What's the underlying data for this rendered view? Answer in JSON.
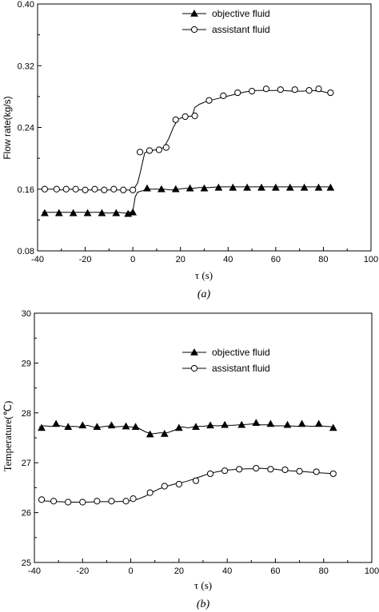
{
  "chart_data": [
    {
      "type": "line",
      "panel": "a",
      "caption": "(a)",
      "xlabel": "τ  (s)",
      "ylabel": "Flow rate(kg/s)",
      "xlim": [
        -40,
        100
      ],
      "ylim": [
        0.08,
        0.4
      ],
      "xticks": [
        -40,
        -20,
        0,
        20,
        40,
        60,
        80,
        100
      ],
      "yticks": [
        0.08,
        0.16,
        0.24,
        0.32,
        0.4
      ],
      "ytick_labels": [
        "0.08",
        "0.16",
        "0.24",
        "0.32",
        "0.40"
      ],
      "xtick_labels": [
        "-40",
        "-20",
        "0",
        "20",
        "40",
        "60",
        "80",
        "100"
      ],
      "legend_position": "top-center",
      "series": [
        {
          "name": "objective fluid",
          "marker": "filled-triangle",
          "line": [
            [
              -38,
              0.13
            ],
            [
              -34,
              0.13
            ],
            [
              -30,
              0.13
            ],
            [
              -26,
              0.13
            ],
            [
              -22,
              0.13
            ],
            [
              -18,
              0.13
            ],
            [
              -14,
              0.13
            ],
            [
              -10,
              0.129
            ],
            [
              -6,
              0.13
            ],
            [
              -3,
              0.129
            ],
            [
              0,
              0.131
            ],
            [
              1,
              0.15
            ],
            [
              2,
              0.156
            ],
            [
              4,
              0.158
            ],
            [
              7,
              0.16
            ],
            [
              10,
              0.16
            ],
            [
              13,
              0.16
            ],
            [
              16,
              0.159
            ],
            [
              19,
              0.16
            ],
            [
              22,
              0.161
            ],
            [
              25,
              0.161
            ],
            [
              28,
              0.162
            ],
            [
              32,
              0.162
            ],
            [
              36,
              0.163
            ],
            [
              40,
              0.163
            ],
            [
              44,
              0.163
            ],
            [
              48,
              0.163
            ],
            [
              52,
              0.163
            ],
            [
              56,
              0.163
            ],
            [
              60,
              0.163
            ],
            [
              64,
              0.163
            ],
            [
              68,
              0.163
            ],
            [
              72,
              0.163
            ],
            [
              76,
              0.163
            ],
            [
              80,
              0.163
            ],
            [
              83,
              0.163
            ]
          ],
          "markers": [
            [
              -37,
              0.129
            ],
            [
              -31,
              0.129
            ],
            [
              -25,
              0.129
            ],
            [
              -19,
              0.129
            ],
            [
              -13,
              0.129
            ],
            [
              -7,
              0.129
            ],
            [
              -2,
              0.128
            ],
            [
              0,
              0.13
            ],
            [
              6,
              0.161
            ],
            [
              12,
              0.16
            ],
            [
              18,
              0.16
            ],
            [
              24,
              0.161
            ],
            [
              30,
              0.161
            ],
            [
              36,
              0.162
            ],
            [
              42,
              0.162
            ],
            [
              48,
              0.162
            ],
            [
              54,
              0.162
            ],
            [
              60,
              0.162
            ],
            [
              66,
              0.162
            ],
            [
              72,
              0.162
            ],
            [
              78,
              0.162
            ],
            [
              83,
              0.162
            ]
          ]
        },
        {
          "name": "assistant fluid",
          "marker": "open-circle",
          "line": [
            [
              -38,
              0.16
            ],
            [
              -34,
              0.16
            ],
            [
              -30,
              0.159
            ],
            [
              -26,
              0.16
            ],
            [
              -22,
              0.159
            ],
            [
              -18,
              0.159
            ],
            [
              -14,
              0.159
            ],
            [
              -10,
              0.159
            ],
            [
              -6,
              0.159
            ],
            [
              -2,
              0.159
            ],
            [
              0,
              0.158
            ],
            [
              2,
              0.168
            ],
            [
              3,
              0.18
            ],
            [
              4,
              0.194
            ],
            [
              5,
              0.207
            ],
            [
              7,
              0.21
            ],
            [
              10,
              0.211
            ],
            [
              13,
              0.214
            ],
            [
              15,
              0.225
            ],
            [
              17,
              0.24
            ],
            [
              19,
              0.251
            ],
            [
              21,
              0.253
            ],
            [
              23,
              0.254
            ],
            [
              25,
              0.255
            ],
            [
              26,
              0.266
            ],
            [
              28,
              0.27
            ],
            [
              31,
              0.274
            ],
            [
              35,
              0.277
            ],
            [
              39,
              0.28
            ],
            [
              43,
              0.283
            ],
            [
              47,
              0.286
            ],
            [
              51,
              0.288
            ],
            [
              55,
              0.288
            ],
            [
              59,
              0.288
            ],
            [
              63,
              0.288
            ],
            [
              67,
              0.287
            ],
            [
              71,
              0.287
            ],
            [
              75,
              0.288
            ],
            [
              79,
              0.287
            ],
            [
              83,
              0.284
            ]
          ],
          "markers": [
            [
              -37,
              0.16
            ],
            [
              -32,
              0.16
            ],
            [
              -28,
              0.16
            ],
            [
              -24,
              0.16
            ],
            [
              -20,
              0.159
            ],
            [
              -16,
              0.16
            ],
            [
              -12,
              0.159
            ],
            [
              -8,
              0.16
            ],
            [
              -4,
              0.159
            ],
            [
              0,
              0.159
            ],
            [
              3,
              0.208
            ],
            [
              7,
              0.21
            ],
            [
              11,
              0.211
            ],
            [
              14,
              0.214
            ],
            [
              18,
              0.25
            ],
            [
              22,
              0.254
            ],
            [
              26,
              0.255
            ],
            [
              32,
              0.275
            ],
            [
              38,
              0.281
            ],
            [
              44,
              0.285
            ],
            [
              50,
              0.287
            ],
            [
              56,
              0.29
            ],
            [
              62,
              0.289
            ],
            [
              68,
              0.289
            ],
            [
              74,
              0.288
            ],
            [
              78,
              0.29
            ],
            [
              83,
              0.285
            ]
          ]
        }
      ]
    },
    {
      "type": "line",
      "panel": "b",
      "caption": "(b)",
      "xlabel": "τ  (s)",
      "ylabel": "Temperature(℃)",
      "xlim": [
        -40,
        100
      ],
      "ylim": [
        25,
        30
      ],
      "xticks": [
        -40,
        -20,
        0,
        20,
        40,
        60,
        80,
        100
      ],
      "yticks": [
        25,
        26,
        27,
        28,
        29,
        30
      ],
      "ytick_labels": [
        "25",
        "26",
        "27",
        "28",
        "29",
        "30"
      ],
      "xtick_labels": [
        "-40",
        "-20",
        "0",
        "20",
        "40",
        "60",
        "80",
        "100"
      ],
      "legend_position": "top-center",
      "series": [
        {
          "name": "objective fluid",
          "marker": "filled-triangle",
          "line": [
            [
              -38,
              27.72
            ],
            [
              -36,
              27.74
            ],
            [
              -33,
              27.73
            ],
            [
              -30,
              27.75
            ],
            [
              -27,
              27.72
            ],
            [
              -24,
              27.73
            ],
            [
              -21,
              27.72
            ],
            [
              -18,
              27.75
            ],
            [
              -15,
              27.71
            ],
            [
              -12,
              27.72
            ],
            [
              -9,
              27.74
            ],
            [
              -6,
              27.72
            ],
            [
              -3,
              27.73
            ],
            [
              0,
              27.72
            ],
            [
              3,
              27.7
            ],
            [
              6,
              27.62
            ],
            [
              9,
              27.58
            ],
            [
              12,
              27.6
            ],
            [
              15,
              27.6
            ],
            [
              18,
              27.65
            ],
            [
              21,
              27.72
            ],
            [
              24,
              27.7
            ],
            [
              27,
              27.73
            ],
            [
              30,
              27.73
            ],
            [
              33,
              27.75
            ],
            [
              36,
              27.74
            ],
            [
              39,
              27.75
            ],
            [
              42,
              27.75
            ],
            [
              45,
              27.76
            ],
            [
              48,
              27.77
            ],
            [
              51,
              27.78
            ],
            [
              54,
              27.76
            ],
            [
              57,
              27.76
            ],
            [
              60,
              27.74
            ],
            [
              63,
              27.74
            ],
            [
              66,
              27.74
            ],
            [
              69,
              27.73
            ],
            [
              72,
              27.74
            ],
            [
              75,
              27.73
            ],
            [
              78,
              27.74
            ],
            [
              81,
              27.73
            ],
            [
              84,
              27.72
            ]
          ],
          "markers": [
            [
              -37,
              27.7
            ],
            [
              -31,
              27.78
            ],
            [
              -26,
              27.72
            ],
            [
              -20,
              27.75
            ],
            [
              -14,
              27.72
            ],
            [
              -8,
              27.75
            ],
            [
              -2,
              27.73
            ],
            [
              2,
              27.72
            ],
            [
              8,
              27.57
            ],
            [
              14,
              27.58
            ],
            [
              20,
              27.7
            ],
            [
              27,
              27.72
            ],
            [
              33,
              27.75
            ],
            [
              39,
              27.76
            ],
            [
              46,
              27.76
            ],
            [
              52,
              27.8
            ],
            [
              58,
              27.78
            ],
            [
              65,
              27.76
            ],
            [
              71,
              27.78
            ],
            [
              78,
              27.78
            ],
            [
              84,
              27.7
            ]
          ]
        },
        {
          "name": "assistant fluid",
          "marker": "open-circle",
          "line": [
            [
              -38,
              26.24
            ],
            [
              -34,
              26.23
            ],
            [
              -30,
              26.22
            ],
            [
              -26,
              26.21
            ],
            [
              -22,
              26.21
            ],
            [
              -18,
              26.21
            ],
            [
              -14,
              26.22
            ],
            [
              -10,
              26.22
            ],
            [
              -6,
              26.22
            ],
            [
              -2,
              26.23
            ],
            [
              0,
              26.24
            ],
            [
              3,
              26.27
            ],
            [
              6,
              26.33
            ],
            [
              9,
              26.41
            ],
            [
              12,
              26.48
            ],
            [
              15,
              26.53
            ],
            [
              18,
              26.57
            ],
            [
              21,
              26.6
            ],
            [
              24,
              26.64
            ],
            [
              27,
              26.69
            ],
            [
              30,
              26.74
            ],
            [
              33,
              26.79
            ],
            [
              36,
              26.82
            ],
            [
              39,
              26.85
            ],
            [
              42,
              26.86
            ],
            [
              45,
              26.87
            ],
            [
              48,
              26.88
            ],
            [
              51,
              26.88
            ],
            [
              54,
              26.89
            ],
            [
              57,
              26.88
            ],
            [
              60,
              26.87
            ],
            [
              63,
              26.85
            ],
            [
              66,
              26.84
            ],
            [
              69,
              26.83
            ],
            [
              72,
              26.82
            ],
            [
              75,
              26.81
            ],
            [
              78,
              26.8
            ],
            [
              81,
              26.79
            ],
            [
              84,
              26.78
            ]
          ],
          "markers": [
            [
              -37,
              26.26
            ],
            [
              -32,
              26.23
            ],
            [
              -26,
              26.21
            ],
            [
              -20,
              26.21
            ],
            [
              -14,
              26.23
            ],
            [
              -8,
              26.23
            ],
            [
              -2,
              26.23
            ],
            [
              1,
              26.28
            ],
            [
              8,
              26.4
            ],
            [
              14,
              26.53
            ],
            [
              20,
              26.57
            ],
            [
              27,
              26.64
            ],
            [
              33,
              26.78
            ],
            [
              39,
              26.84
            ],
            [
              45,
              26.87
            ],
            [
              52,
              26.89
            ],
            [
              58,
              26.87
            ],
            [
              64,
              26.86
            ],
            [
              70,
              26.83
            ],
            [
              77,
              26.82
            ],
            [
              84,
              26.78
            ]
          ]
        }
      ]
    }
  ]
}
